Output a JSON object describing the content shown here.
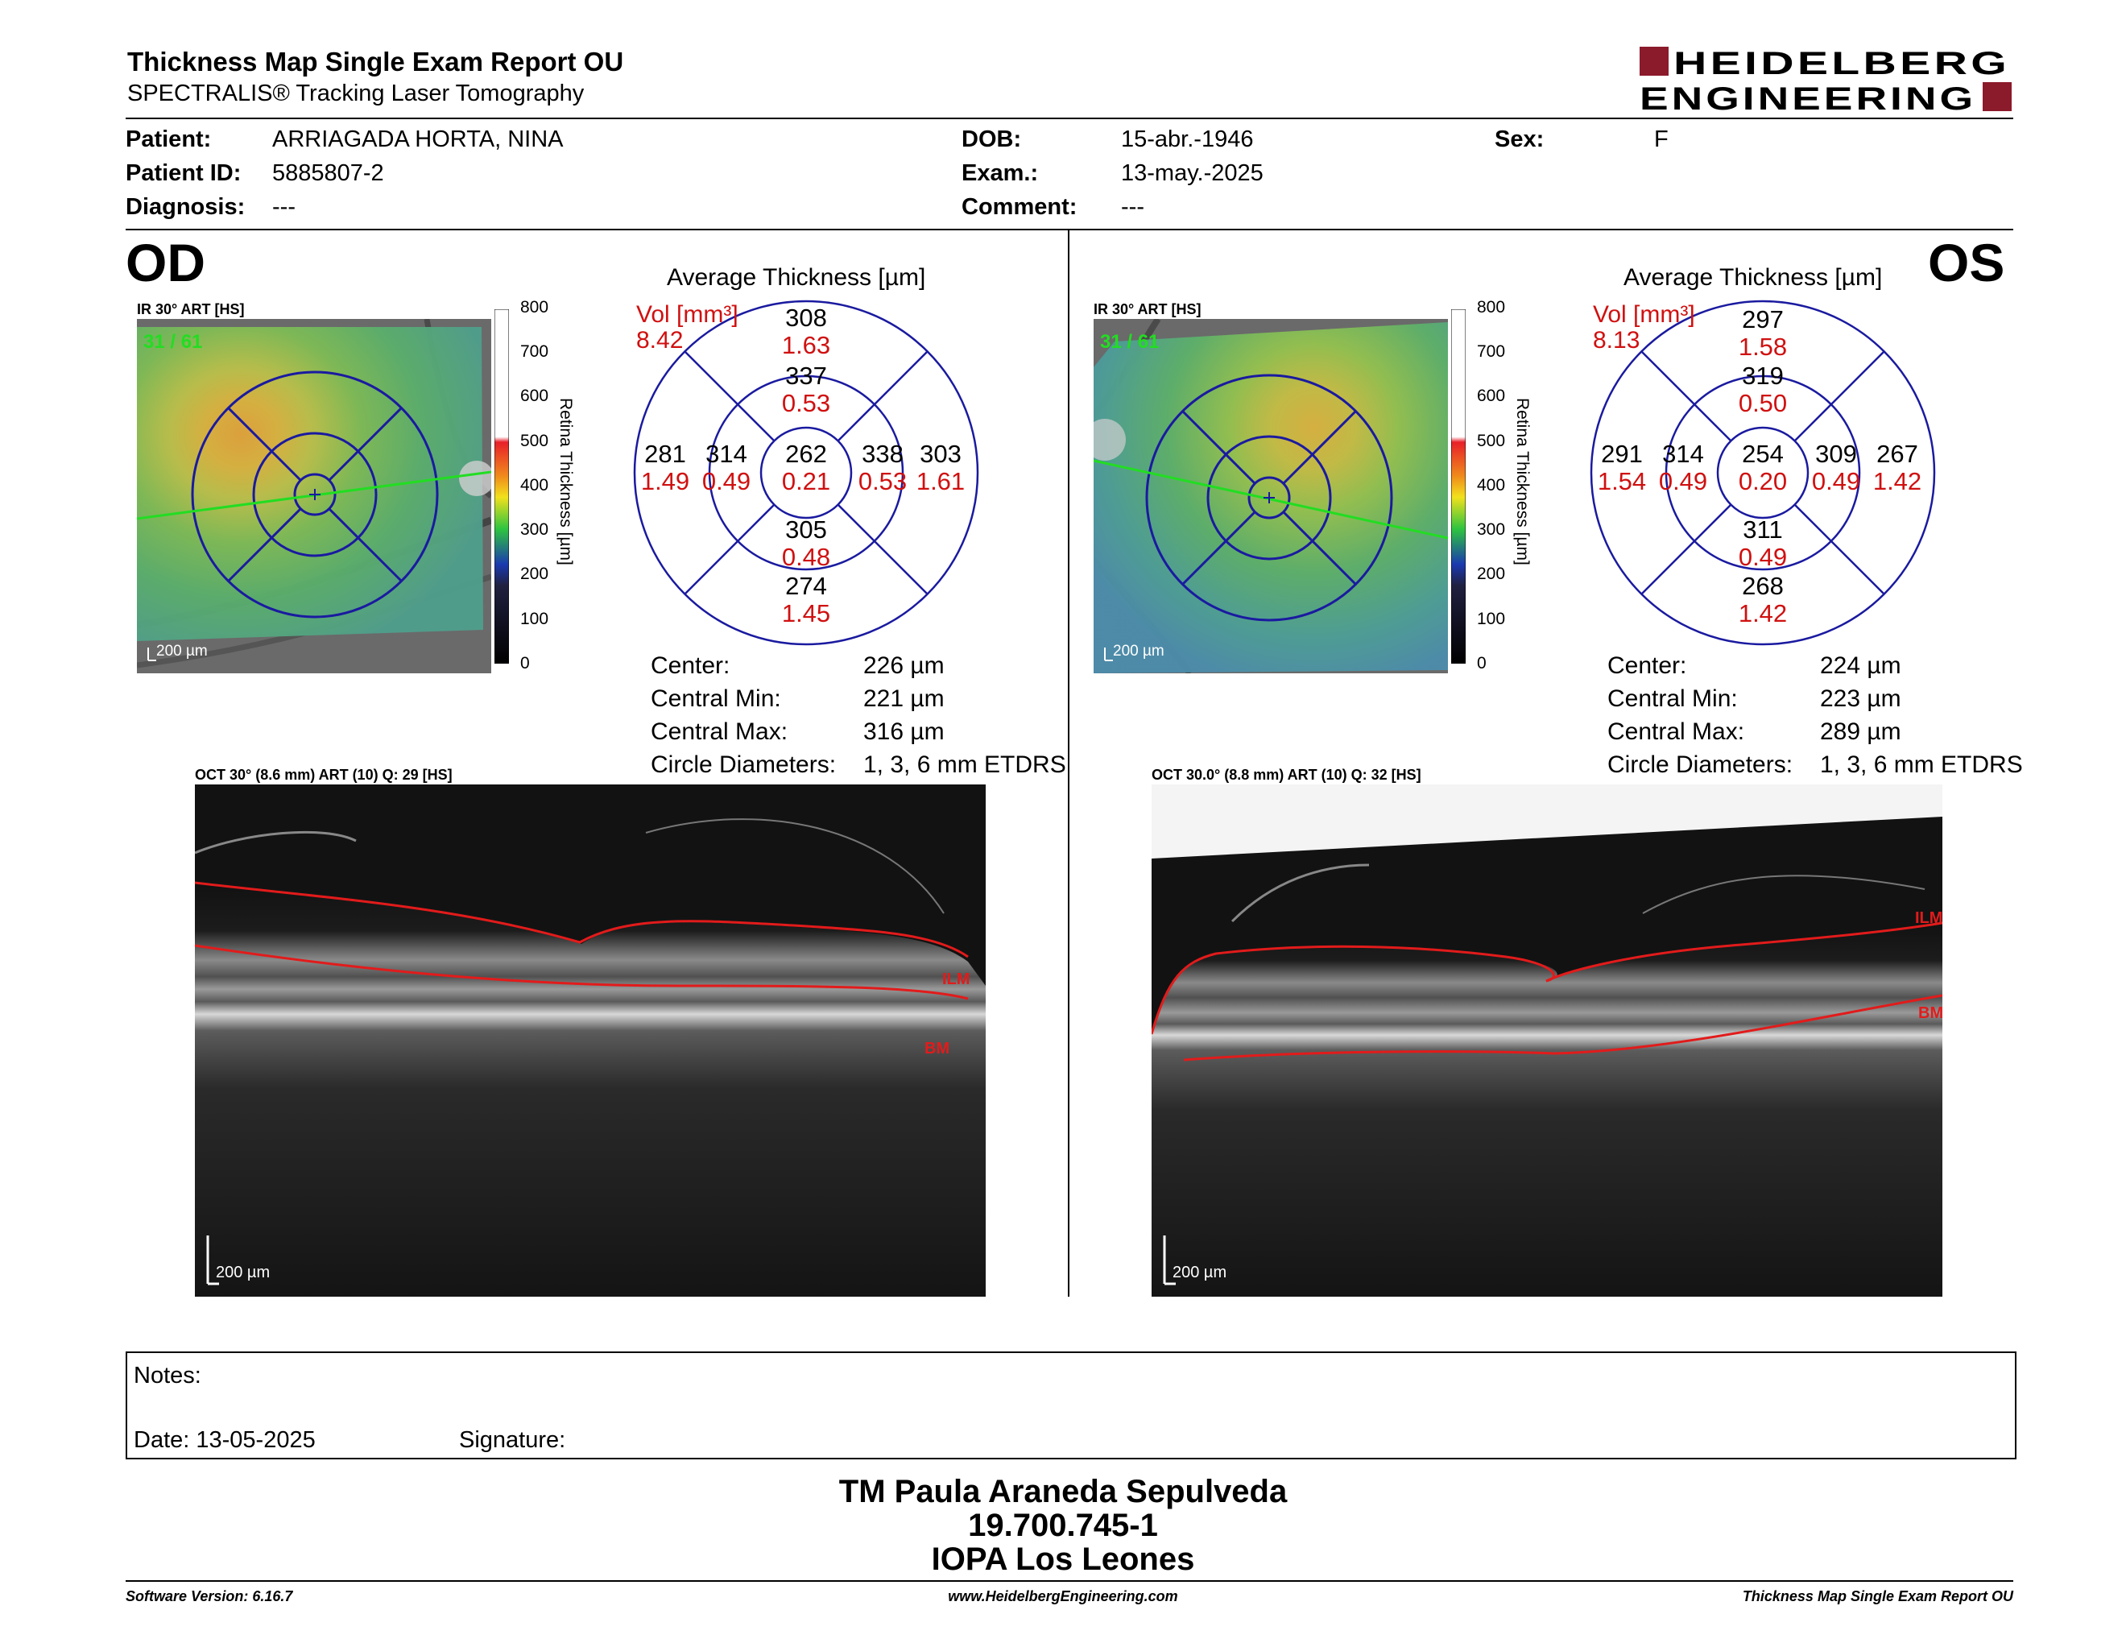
{
  "header": {
    "title": "Thickness Map Single Exam Report OU",
    "subtitle": "SPECTRALIS® Tracking Laser Tomography",
    "logo_line1": "HEIDELBERG",
    "logo_line2": "ENGINEERING",
    "brand_color": "#8b1a2b"
  },
  "patient": {
    "patient_label": "Patient:",
    "patient_value": "ARRIAGADA HORTA, NINA",
    "id_label": "Patient ID:",
    "id_value": "5885807-2",
    "diagnosis_label": "Diagnosis:",
    "diagnosis_value": "---",
    "dob_label": "DOB:",
    "dob_value": "15-abr.-1946",
    "exam_label": "Exam.:",
    "exam_value": "13-may.-2025",
    "comment_label": "Comment:",
    "comment_value": "---",
    "sex_label": "Sex:",
    "sex_value": "F"
  },
  "scale": {
    "ticks": [
      "800",
      "700",
      "600",
      "500",
      "400",
      "300",
      "200",
      "100",
      "0"
    ],
    "title": "Retina Thickness [µm]"
  },
  "od": {
    "eye": "OD",
    "ir_label": "IR 30° ART [HS]",
    "frame_count": "31 / 61",
    "scalebar": "200 µm",
    "avg_title": "Average Thickness [µm]",
    "vol_label": "Vol [mm³]",
    "vol_total": "8.42",
    "sectors": {
      "outer_sup": {
        "t": "308",
        "v": "1.63"
      },
      "inner_sup": {
        "t": "337",
        "v": "0.53"
      },
      "outer_left": {
        "t": "281",
        "v": "1.49"
      },
      "inner_left": {
        "t": "314",
        "v": "0.49"
      },
      "center": {
        "t": "262",
        "v": "0.21"
      },
      "inner_right": {
        "t": "338",
        "v": "0.53"
      },
      "outer_right": {
        "t": "303",
        "v": "1.61"
      },
      "inner_inf": {
        "t": "305",
        "v": "0.48"
      },
      "outer_inf": {
        "t": "274",
        "v": "1.45"
      }
    },
    "stats": {
      "center_label": "Center:",
      "center_value": "226 µm",
      "min_label": "Central Min:",
      "min_value": "221 µm",
      "max_label": "Central Max:",
      "max_value": "316 µm",
      "circ_label": "Circle Diameters:",
      "circ_value": "1, 3, 6 mm ETDRS"
    },
    "oct_label": "OCT 30° (8.6 mm) ART (10) Q: 29 [HS]",
    "ilm": "ILM",
    "bm": "BM",
    "oct_scalebar": "200 µm"
  },
  "os": {
    "eye": "OS",
    "ir_label": "IR 30° ART [HS]",
    "frame_count": "31 / 61",
    "scalebar": "200 µm",
    "avg_title": "Average Thickness [µm]",
    "vol_label": "Vol [mm³]",
    "vol_total": "8.13",
    "sectors": {
      "outer_sup": {
        "t": "297",
        "v": "1.58"
      },
      "inner_sup": {
        "t": "319",
        "v": "0.50"
      },
      "outer_left": {
        "t": "291",
        "v": "1.54"
      },
      "inner_left": {
        "t": "314",
        "v": "0.49"
      },
      "center": {
        "t": "254",
        "v": "0.20"
      },
      "inner_right": {
        "t": "309",
        "v": "0.49"
      },
      "outer_right": {
        "t": "267",
        "v": "1.42"
      },
      "inner_inf": {
        "t": "311",
        "v": "0.49"
      },
      "outer_inf": {
        "t": "268",
        "v": "1.42"
      }
    },
    "stats": {
      "center_label": "Center:",
      "center_value": "224 µm",
      "min_label": "Central Min:",
      "min_value": "223 µm",
      "max_label": "Central Max:",
      "max_value": "289 µm",
      "circ_label": "Circle Diameters:",
      "circ_value": "1, 3, 6 mm ETDRS"
    },
    "oct_label": "OCT 30.0° (8.8 mm) ART (10) Q: 32 [HS]",
    "ilm": "ILM",
    "bm": "BM",
    "oct_scalebar": "200 µm"
  },
  "notes": {
    "notes_label": "Notes:",
    "date_label": "Date: 13-05-2025",
    "signature_label": "Signature:"
  },
  "signature": {
    "name": "TM Paula Araneda Sepulveda",
    "rut": "19.700.745-1",
    "clinic": "IOPA Los Leones"
  },
  "footer": {
    "software": "Software Version: 6.16.7",
    "website": "www.HeidelbergEngineering.com",
    "report": "Thickness Map Single Exam Report OU"
  }
}
